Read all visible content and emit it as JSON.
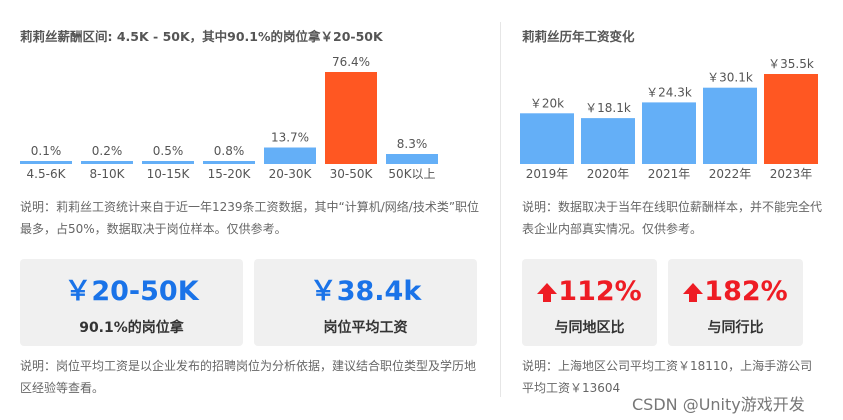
{
  "left_title": "莉莉丝薪酬区间: 4.5K - 50K，其中90.1%的岗位拿￥20-50K",
  "right_title": "莉莉丝历年工资变化",
  "left_note": "说明：莉莉丝工资统计来自于近一年1239条工资数据，其中“计算机/网络/技术类”职位最多，占50%，数据取决于岗位样本。仅供参考。",
  "right_note": "说明：数据取决于当年在线职位薪酬样本，并不能完全代表企业内部真实情况。仅供参考。",
  "cards_left": [
    {
      "value": "￥20-50K",
      "label": "90.1%的岗位拿"
    },
    {
      "value": "￥38.4k",
      "label": "岗位平均工资"
    }
  ],
  "cards_right": [
    {
      "value": "112%",
      "label": "与同地区比"
    },
    {
      "value": "182%",
      "label": "与同行比"
    }
  ],
  "bottom_left_note": "说明：岗位平均工资是以企业发布的招聘岗位为分析依据，建议结合职位类型及学历地区经验等查看。",
  "bottom_right_note": "说明：上海地区公司平均工资￥18110，上海手游公司平均工资￥13604",
  "watermark": "CSDN @Unity游戏开发",
  "colors": {
    "blue": "#64aff7",
    "orange": "#ff5722",
    "red_text": "#ee1c24",
    "blue_text": "#1a73e8"
  },
  "chart_data": [
    {
      "type": "bar",
      "categories": [
        "4.5-6K",
        "8-10K",
        "10-15K",
        "15-20K",
        "20-30K",
        "30-50K",
        "50K以上"
      ],
      "values": [
        0.1,
        0.2,
        0.5,
        0.8,
        13.7,
        76.4,
        8.3
      ],
      "labels": [
        "0.1%",
        "0.2%",
        "0.5%",
        "0.8%",
        "13.7%",
        "76.4%",
        "8.3%"
      ],
      "highlight_index": 5
    },
    {
      "type": "bar",
      "categories": [
        "2019年",
        "2020年",
        "2021年",
        "2022年",
        "2023年"
      ],
      "values": [
        20,
        18.1,
        24.3,
        30.1,
        35.5
      ],
      "labels": [
        "￥20k",
        "￥18.1k",
        "￥24.3k",
        "￥30.1k",
        "￥35.5k"
      ],
      "highlight_index": 4
    }
  ]
}
